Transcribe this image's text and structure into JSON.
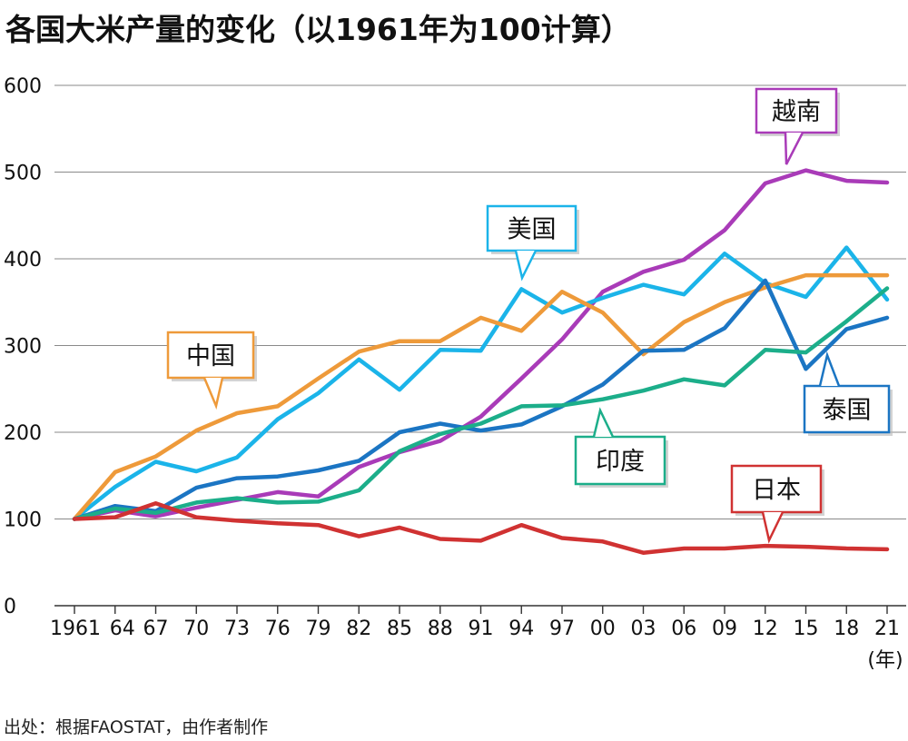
{
  "chart_data": {
    "type": "line",
    "title": "各国大米产量的变化（以1961年为100计算）",
    "xlabel": "(年)",
    "ylabel": "",
    "ylim": [
      0,
      600
    ],
    "yticks": [
      "0",
      "100",
      "200",
      "300",
      "400",
      "500",
      "600"
    ],
    "grid": true,
    "categories": [
      "1961",
      "64",
      "67",
      "70",
      "73",
      "76",
      "79",
      "82",
      "85",
      "88",
      "91",
      "94",
      "97",
      "00",
      "03",
      "06",
      "09",
      "12",
      "15",
      "18",
      "21"
    ],
    "series": [
      {
        "name": "越南",
        "color": "#a93bb8",
        "values": [
          100,
          110,
          103,
          113,
          122,
          131,
          126,
          160,
          177,
          190,
          218,
          262,
          307,
          362,
          385,
          399,
          433,
          487,
          502,
          490,
          488
        ]
      },
      {
        "name": "美国",
        "color": "#1bb4e9",
        "values": [
          100,
          137,
          166,
          155,
          171,
          215,
          245,
          284,
          249,
          295,
          294,
          365,
          338,
          355,
          370,
          359,
          406,
          372,
          356,
          413,
          353
        ]
      },
      {
        "name": "中国",
        "color": "#ee9a3a",
        "values": [
          100,
          154,
          172,
          202,
          222,
          230,
          262,
          293,
          305,
          305,
          332,
          317,
          362,
          338,
          290,
          327,
          350,
          367,
          381,
          381,
          381
        ]
      },
      {
        "name": "泰国",
        "color": "#1b75c3",
        "values": [
          100,
          115,
          109,
          136,
          147,
          149,
          156,
          167,
          200,
          210,
          202,
          209,
          230,
          255,
          294,
          295,
          320,
          375,
          273,
          319,
          332
        ]
      },
      {
        "name": "印度",
        "color": "#1cae8a",
        "values": [
          100,
          112,
          107,
          119,
          124,
          119,
          120,
          133,
          178,
          198,
          210,
          230,
          231,
          238,
          248,
          261,
          254,
          295,
          292,
          328,
          366
        ]
      },
      {
        "name": "日本",
        "color": "#d03232",
        "values": [
          100,
          102,
          118,
          102,
          98,
          95,
          93,
          80,
          90,
          77,
          75,
          93,
          78,
          74,
          61,
          66,
          66,
          69,
          68,
          66,
          65
        ]
      }
    ],
    "source": "出处：根据FAOSTAT，由作者制作"
  }
}
